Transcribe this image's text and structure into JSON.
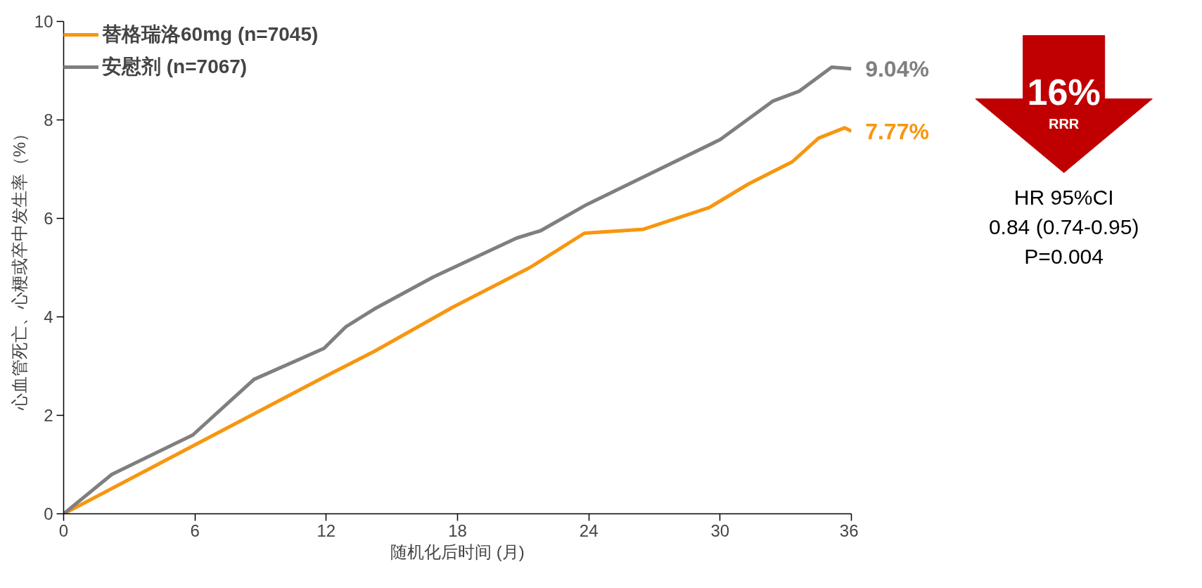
{
  "chart_data": {
    "type": "line",
    "xlabel": "随机化后时间 (月)",
    "ylabel": "心血管死亡、心梗或卒中发生率（%）",
    "x": [
      0,
      2.2,
      5.9,
      8.7,
      11.9,
      12.9,
      14.2,
      16.9,
      20.7,
      21.8,
      23.9,
      27,
      30,
      32.4,
      33.6,
      35.1,
      36
    ],
    "series": [
      {
        "name": "替格瑞洛60mg (n=7045)",
        "color": "#f7960f",
        "x": [
          0,
          6,
          12,
          14.2,
          17.8,
          21.3,
          23.8,
          26.5,
          29.5,
          31.3,
          33.3,
          34.5,
          35.7,
          36
        ],
        "values": [
          0,
          1.4,
          2.8,
          3.3,
          4.2,
          5.0,
          5.7,
          5.78,
          6.22,
          6.7,
          7.15,
          7.63,
          7.84,
          7.77
        ]
      },
      {
        "name": "安慰剂 (n=7067)",
        "color": "#7f7f7f",
        "values": [
          0,
          0.8,
          1.6,
          2.73,
          3.36,
          3.8,
          4.16,
          4.81,
          5.6,
          5.75,
          6.28,
          6.95,
          7.6,
          8.38,
          8.58,
          9.07,
          9.04
        ]
      }
    ],
    "xlim": [
      0,
      36
    ],
    "ylim": [
      0,
      10
    ],
    "xticks": [
      0,
      6,
      12,
      18,
      24,
      30,
      36
    ],
    "yticks": [
      0,
      2,
      4,
      6,
      8,
      10
    ],
    "grid": false,
    "legend": "top left",
    "marker": "none",
    "line_style": "solid",
    "annotations": [
      {
        "text": "9.04%",
        "x": 36,
        "y": 9.04
      },
      {
        "text": "7.77%",
        "x": 36,
        "y": 7.77
      },
      "16%",
      "RRR",
      "HR 95%CI",
      "0.84 (0.74-0.95)",
      "P=0.004"
    ]
  }
}
